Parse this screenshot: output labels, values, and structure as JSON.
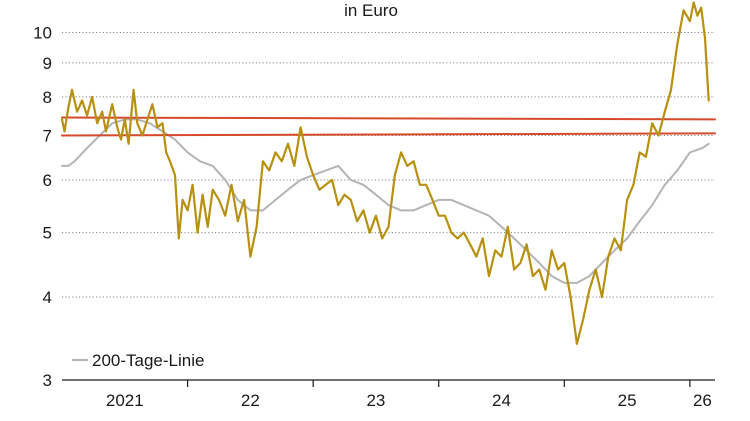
{
  "chart_data": {
    "type": "line",
    "subtitle": "in Euro",
    "scale": "log",
    "ylim": [
      3,
      11
    ],
    "yticks": [
      3,
      4,
      5,
      6,
      7,
      8,
      9,
      10
    ],
    "xlim": [
      2021.0,
      2026.2
    ],
    "x_ticks": [
      {
        "label": "2021",
        "start": 2021,
        "end": 2022
      },
      {
        "label": "22",
        "start": 2022,
        "end": 2023
      },
      {
        "label": "23",
        "start": 2023,
        "end": 2024
      },
      {
        "label": "24",
        "start": 2024,
        "end": 2025
      },
      {
        "label": "25",
        "start": 2025,
        "end": 2026
      },
      {
        "label": "26",
        "start": 2026,
        "end": 2026.2
      }
    ],
    "grid": "horizontal-dotted",
    "legend": {
      "position": "bottom-left",
      "label": "200-Tage-Linie"
    },
    "colors": {
      "price": "#b8900f",
      "ma200": "#b4b4b4",
      "trendline": "#d64a2b",
      "axis": "#1a1a1a",
      "grid": "#888888"
    },
    "series": [
      {
        "key": "price",
        "x": [
          2021.0,
          2021.02,
          2021.05,
          2021.08,
          2021.12,
          2021.16,
          2021.2,
          2021.24,
          2021.28,
          2021.32,
          2021.35,
          2021.4,
          2021.44,
          2021.47,
          2021.5,
          2021.53,
          2021.57,
          2021.6,
          2021.64,
          2021.68,
          2021.72,
          2021.76,
          2021.8,
          2021.83,
          2021.86,
          2021.9,
          2021.93,
          2021.96,
          2022.0,
          2022.04,
          2022.08,
          2022.12,
          2022.16,
          2022.2,
          2022.25,
          2022.3,
          2022.35,
          2022.4,
          2022.45,
          2022.5,
          2022.55,
          2022.6,
          2022.65,
          2022.7,
          2022.75,
          2022.8,
          2022.85,
          2022.9,
          2022.95,
          2023.0,
          2023.05,
          2023.1,
          2023.15,
          2023.2,
          2023.25,
          2023.3,
          2023.35,
          2023.4,
          2023.45,
          2023.5,
          2023.55,
          2023.6,
          2023.65,
          2023.7,
          2023.75,
          2023.8,
          2023.85,
          2023.9,
          2023.95,
          2024.0,
          2024.05,
          2024.1,
          2024.15,
          2024.2,
          2024.25,
          2024.3,
          2024.35,
          2024.4,
          2024.45,
          2024.5,
          2024.55,
          2024.6,
          2024.65,
          2024.7,
          2024.75,
          2024.8,
          2024.85,
          2024.9,
          2024.95,
          2025.0,
          2025.05,
          2025.1,
          2025.15,
          2025.2,
          2025.25,
          2025.3,
          2025.35,
          2025.4,
          2025.45,
          2025.5,
          2025.55,
          2025.6,
          2025.65,
          2025.7,
          2025.75,
          2025.8,
          2025.85,
          2025.9,
          2025.95,
          2026.0,
          2026.03,
          2026.06,
          2026.09,
          2026.12,
          2026.15
        ],
        "y": [
          7.4,
          7.1,
          7.7,
          8.2,
          7.6,
          7.9,
          7.5,
          8.0,
          7.3,
          7.6,
          7.1,
          7.8,
          7.2,
          6.9,
          7.4,
          6.8,
          8.2,
          7.3,
          7.0,
          7.4,
          7.8,
          7.2,
          7.3,
          6.6,
          6.4,
          6.1,
          4.9,
          5.6,
          5.4,
          5.9,
          5.0,
          5.7,
          5.1,
          5.8,
          5.6,
          5.3,
          5.9,
          5.2,
          5.6,
          4.6,
          5.1,
          6.4,
          6.2,
          6.6,
          6.4,
          6.8,
          6.3,
          7.2,
          6.5,
          6.1,
          5.8,
          5.9,
          6.0,
          5.5,
          5.7,
          5.6,
          5.2,
          5.4,
          5.0,
          5.3,
          4.9,
          5.1,
          6.1,
          6.6,
          6.3,
          6.4,
          5.9,
          5.9,
          5.6,
          5.3,
          5.3,
          5.0,
          4.9,
          5.0,
          4.8,
          4.6,
          4.9,
          4.3,
          4.7,
          4.6,
          5.1,
          4.4,
          4.5,
          4.8,
          4.3,
          4.4,
          4.1,
          4.7,
          4.4,
          4.5,
          4.0,
          3.4,
          3.7,
          4.1,
          4.4,
          4.0,
          4.6,
          4.9,
          4.7,
          5.6,
          5.9,
          6.6,
          6.5,
          7.3,
          7.0,
          7.6,
          8.2,
          9.6,
          10.8,
          10.4,
          11.1,
          10.6,
          10.9,
          9.8,
          7.9
        ]
      },
      {
        "key": "ma200",
        "x": [
          2021.0,
          2021.05,
          2021.1,
          2021.2,
          2021.3,
          2021.4,
          2021.5,
          2021.6,
          2021.7,
          2021.8,
          2021.9,
          2022.0,
          2022.1,
          2022.2,
          2022.3,
          2022.4,
          2022.5,
          2022.6,
          2022.7,
          2022.8,
          2022.9,
          2023.0,
          2023.1,
          2023.2,
          2023.3,
          2023.4,
          2023.5,
          2023.6,
          2023.7,
          2023.8,
          2023.9,
          2024.0,
          2024.1,
          2024.2,
          2024.3,
          2024.4,
          2024.5,
          2024.6,
          2024.7,
          2024.8,
          2024.9,
          2025.0,
          2025.1,
          2025.2,
          2025.3,
          2025.4,
          2025.5,
          2025.6,
          2025.7,
          2025.8,
          2025.9,
          2026.0,
          2026.1,
          2026.15
        ],
        "y": [
          6.3,
          6.3,
          6.4,
          6.7,
          7.0,
          7.3,
          7.4,
          7.4,
          7.3,
          7.1,
          6.9,
          6.6,
          6.4,
          6.3,
          6.0,
          5.6,
          5.4,
          5.4,
          5.6,
          5.8,
          6.0,
          6.1,
          6.2,
          6.3,
          6.0,
          5.9,
          5.7,
          5.5,
          5.4,
          5.4,
          5.5,
          5.6,
          5.6,
          5.5,
          5.4,
          5.3,
          5.1,
          4.9,
          4.7,
          4.5,
          4.3,
          4.2,
          4.2,
          4.3,
          4.5,
          4.7,
          4.9,
          5.2,
          5.5,
          5.9,
          6.2,
          6.6,
          6.7,
          6.8
        ]
      },
      {
        "key": "trendline-upper",
        "x": [
          2021.0,
          2026.2
        ],
        "y": [
          7.45,
          7.4
        ]
      },
      {
        "key": "trendline-lower",
        "x": [
          2021.0,
          2026.2
        ],
        "y": [
          7.0,
          7.05
        ]
      }
    ]
  }
}
